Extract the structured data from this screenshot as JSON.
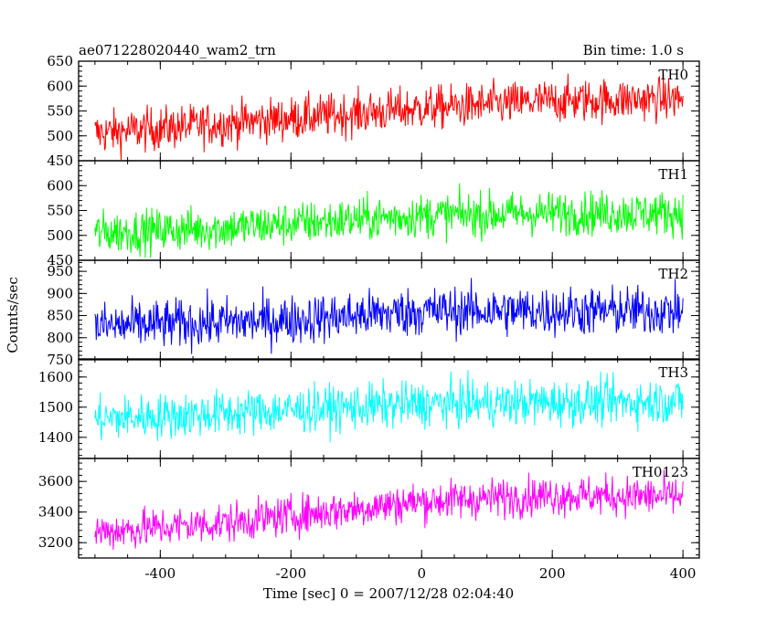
{
  "chart_data": {
    "type": "line",
    "title": "ae071228020440_wam2_trn",
    "subtitle": "Bin time: 1.0 s",
    "xlabel": "Time [sec] 0 = 2007/12/28 02:04:40",
    "ylabel": "Counts/sec",
    "xlim": [
      -525,
      425
    ],
    "x_ticks": [
      -400,
      -200,
      0,
      200,
      400
    ],
    "x_range_data": [
      -500,
      400
    ],
    "panels": [
      {
        "name": "TH0",
        "color": "#ff0000",
        "ylim": [
          450,
          650
        ],
        "y_ticks": [
          450,
          500,
          550,
          600,
          650
        ],
        "trend": [
          [
            -500,
            505
          ],
          [
            -300,
            525
          ],
          [
            0,
            555
          ],
          [
            200,
            570
          ],
          [
            400,
            575
          ]
        ],
        "noise": 22
      },
      {
        "name": "TH1",
        "color": "#00ff00",
        "ylim": [
          450,
          650
        ],
        "y_ticks": [
          450,
          500,
          550,
          600
        ],
        "trend": [
          [
            -500,
            505
          ],
          [
            -300,
            515
          ],
          [
            0,
            540
          ],
          [
            200,
            545
          ],
          [
            400,
            545
          ]
        ],
        "noise": 22
      },
      {
        "name": "TH2",
        "color": "#0000ff",
        "ylim": [
          750,
          975
        ],
        "y_ticks": [
          750,
          800,
          850,
          900,
          950
        ],
        "trend": [
          [
            -500,
            825
          ],
          [
            -200,
            840
          ],
          [
            0,
            860
          ],
          [
            400,
            860
          ]
        ],
        "noise": 28
      },
      {
        "name": "TH3",
        "color": "#00ffff",
        "ylim": [
          1330,
          1660
        ],
        "y_ticks": [
          1400,
          1500,
          1600
        ],
        "trend": [
          [
            -500,
            1460
          ],
          [
            -200,
            1490
          ],
          [
            0,
            1510
          ],
          [
            400,
            1520
          ]
        ],
        "noise": 38
      },
      {
        "name": "TH0123",
        "color": "#ff00ff",
        "ylim": [
          3100,
          3750
        ],
        "y_ticks": [
          3200,
          3400,
          3600
        ],
        "trend": [
          [
            -500,
            3270
          ],
          [
            -300,
            3330
          ],
          [
            0,
            3470
          ],
          [
            200,
            3510
          ],
          [
            400,
            3500
          ]
        ],
        "noise": 65
      }
    ]
  }
}
